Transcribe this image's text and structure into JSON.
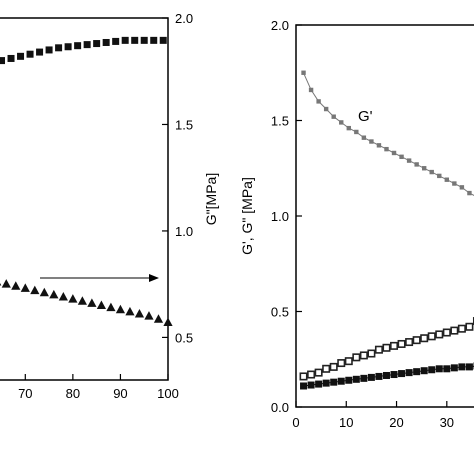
{
  "chart_data": [
    {
      "type": "scatter",
      "title": "",
      "x_ticks": [
        "70",
        "80",
        "90",
        "100"
      ],
      "xlim": [
        63,
        100
      ],
      "y2_ticks": [
        "0.5",
        "1.0",
        "1.5",
        "2.0"
      ],
      "y2label": "G\"[MPa]",
      "y2lim": [
        0.3,
        2.0
      ],
      "arrow": "right",
      "series": [
        {
          "marker": "square",
          "color": "#111111",
          "x": [
            63,
            65,
            67,
            69,
            71,
            73,
            75,
            77,
            79,
            81,
            83,
            85,
            87,
            89,
            91,
            93,
            95,
            97,
            99
          ],
          "values": [
            1.79,
            1.8,
            1.81,
            1.82,
            1.83,
            1.84,
            1.85,
            1.86,
            1.865,
            1.87,
            1.875,
            1.88,
            1.885,
            1.89,
            1.895,
            1.895,
            1.895,
            1.895,
            1.895
          ]
        },
        {
          "marker": "triangle",
          "color": "#111111",
          "x": [
            64,
            66,
            68,
            70,
            72,
            74,
            76,
            78,
            80,
            82,
            84,
            86,
            88,
            90,
            92,
            94,
            96,
            98,
            100
          ],
          "values": [
            0.76,
            0.75,
            0.74,
            0.73,
            0.72,
            0.71,
            0.7,
            0.69,
            0.68,
            0.67,
            0.66,
            0.65,
            0.64,
            0.63,
            0.62,
            0.61,
            0.6,
            0.585,
            0.57
          ]
        }
      ]
    },
    {
      "type": "line",
      "title": "",
      "x_ticks": [
        "0",
        "10",
        "20",
        "30"
      ],
      "xlim": [
        0,
        37
      ],
      "y_ticks": [
        "0.0",
        "0.5",
        "1.0",
        "1.5",
        "2.0"
      ],
      "ylabel": "G', G\" [MPa]",
      "ylim": [
        0,
        2.0
      ],
      "series": [
        {
          "name": "G'",
          "marker": "small-square",
          "color": "#777777",
          "x": [
            1.5,
            3,
            4.5,
            6,
            7.5,
            9,
            10.5,
            12,
            13.5,
            15,
            16.5,
            18,
            19.5,
            21,
            22.5,
            24,
            25.5,
            27,
            28.5,
            30,
            31.5,
            33,
            34.5,
            36,
            37
          ],
          "values": [
            1.75,
            1.66,
            1.6,
            1.56,
            1.52,
            1.49,
            1.46,
            1.44,
            1.41,
            1.39,
            1.37,
            1.35,
            1.33,
            1.31,
            1.29,
            1.27,
            1.25,
            1.23,
            1.21,
            1.19,
            1.17,
            1.15,
            1.12,
            1.1,
            1.09
          ]
        },
        {
          "marker": "open-square",
          "color": "#222222",
          "x": [
            1.5,
            3,
            4.5,
            6,
            7.5,
            9,
            10.5,
            12,
            13.5,
            15,
            16.5,
            18,
            19.5,
            21,
            22.5,
            24,
            25.5,
            27,
            28.5,
            30,
            31.5,
            33,
            34.5,
            36,
            37
          ],
          "values": [
            0.16,
            0.17,
            0.18,
            0.2,
            0.21,
            0.23,
            0.24,
            0.26,
            0.27,
            0.28,
            0.3,
            0.31,
            0.32,
            0.33,
            0.34,
            0.35,
            0.36,
            0.37,
            0.38,
            0.39,
            0.4,
            0.41,
            0.42,
            0.45,
            0.46
          ]
        },
        {
          "marker": "square",
          "color": "#111111",
          "x": [
            1.5,
            3,
            4.5,
            6,
            7.5,
            9,
            10.5,
            12,
            13.5,
            15,
            16.5,
            18,
            19.5,
            21,
            22.5,
            24,
            25.5,
            27,
            28.5,
            30,
            31.5,
            33,
            34.5,
            36,
            37
          ],
          "values": [
            0.11,
            0.115,
            0.12,
            0.125,
            0.13,
            0.135,
            0.14,
            0.145,
            0.15,
            0.155,
            0.16,
            0.165,
            0.17,
            0.175,
            0.18,
            0.185,
            0.19,
            0.195,
            0.2,
            0.2,
            0.205,
            0.21,
            0.21,
            0.215,
            0.22
          ]
        }
      ]
    }
  ]
}
